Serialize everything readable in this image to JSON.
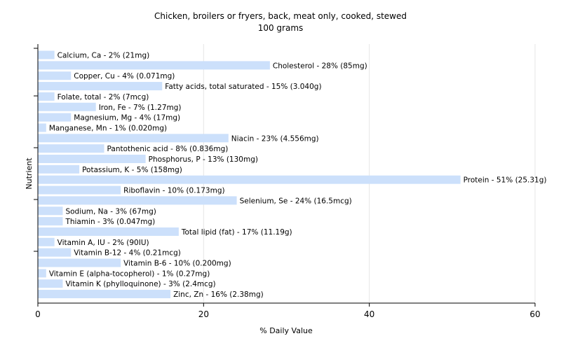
{
  "chart_data": {
    "type": "bar",
    "orientation": "horizontal",
    "title": "Chicken, broilers or fryers, back, meat only, cooked, stewed",
    "subtitle": "100 grams",
    "xlabel": "% Daily Value",
    "ylabel": "Nutrient",
    "xlim": [
      0,
      60
    ],
    "xticks": [
      "0",
      "20",
      "40",
      "60"
    ],
    "grid": true,
    "bar_color": "#cce0fb",
    "categories": [
      "Calcium, Ca",
      "Cholesterol",
      "Copper, Cu",
      "Fatty acids, total saturated",
      "Folate, total",
      "Iron, Fe",
      "Magnesium, Mg",
      "Manganese, Mn",
      "Niacin",
      "Pantothenic acid",
      "Phosphorus, P",
      "Potassium, K",
      "Protein",
      "Riboflavin",
      "Selenium, Se",
      "Sodium, Na",
      "Thiamin",
      "Total lipid (fat)",
      "Vitamin A, IU",
      "Vitamin B-12",
      "Vitamin B-6",
      "Vitamin E (alpha-tocopherol)",
      "Vitamin K (phylloquinone)",
      "Zinc, Zn"
    ],
    "values": [
      2,
      28,
      4,
      15,
      2,
      7,
      4,
      1,
      23,
      8,
      13,
      5,
      51,
      10,
      24,
      3,
      3,
      17,
      2,
      4,
      10,
      1,
      3,
      16
    ],
    "labels": [
      "Calcium, Ca - 2% (21mg)",
      "Cholesterol - 28% (85mg)",
      "Copper, Cu - 4% (0.071mg)",
      "Fatty acids, total saturated - 15% (3.040g)",
      "Folate, total - 2% (7mcg)",
      "Iron, Fe - 7% (1.27mg)",
      "Magnesium, Mg - 4% (17mg)",
      "Manganese, Mn - 1% (0.020mg)",
      "Niacin - 23% (4.556mg)",
      "Pantothenic acid - 8% (0.836mg)",
      "Phosphorus, P - 13% (130mg)",
      "Potassium, K - 5% (158mg)",
      "Protein - 51% (25.31g)",
      "Riboflavin - 10% (0.173mg)",
      "Selenium, Se - 24% (16.5mcg)",
      "Sodium, Na - 3% (67mg)",
      "Thiamin - 3% (0.047mg)",
      "Total lipid (fat) - 17% (11.19g)",
      "Vitamin A, IU - 2% (90IU)",
      "Vitamin B-12 - 4% (0.21mcg)",
      "Vitamin B-6 - 10% (0.200mg)",
      "Vitamin E (alpha-tocopherol) - 1% (0.27mg)",
      "Vitamin K (phylloquinone) - 3% (2.4mcg)",
      "Zinc, Zn - 16% (2.38mg)"
    ]
  }
}
